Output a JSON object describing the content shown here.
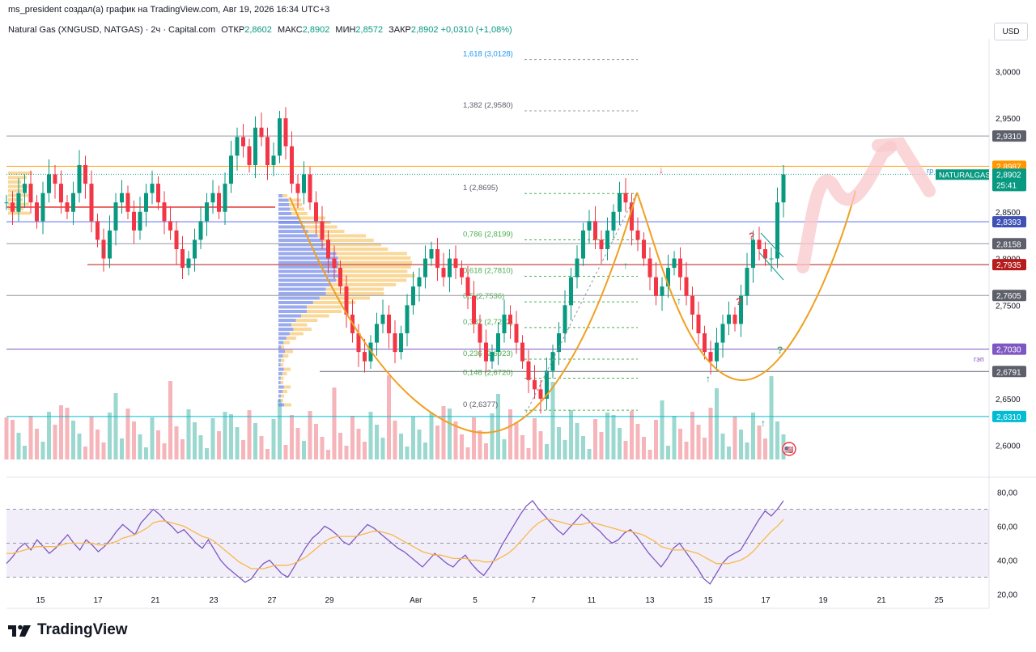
{
  "top_line": "ms_president создал(а) график на TradingView.com, Авг 19, 2026 16:34 UTC+3",
  "header": {
    "symbol": "Natural Gas (XNGUSD, NATGAS) · 2ч · Capital.com",
    "open_label": "ОТКР",
    "open": "2,8602",
    "high_label": "МАКС",
    "high": "2,8902",
    "low_label": "МИН",
    "low": "2,8572",
    "close_label": "ЗАКР",
    "close": "2,8902",
    "change": "+0,0310 (+1,08%)"
  },
  "currency_button": "USD",
  "brand": "TradingView",
  "colors": {
    "up": "#089981",
    "down": "#f23645",
    "orange": "#ff9800",
    "fib": "#4caf50",
    "purple": "#7e57c2",
    "cyan": "#00bcd4",
    "red_line": "#e53935",
    "blue_line": "#5b6cf0"
  },
  "chart_data": [
    {
      "type": "line",
      "title": "",
      "ylim": [
        2.585,
        3.035
      ],
      "y_ticks": [
        "3,0000",
        "2,9500",
        "2,8500",
        "2,8000",
        "2,7500",
        "2,6500",
        "2,6000"
      ],
      "x_tick_labels": [
        "15",
        "17",
        "21",
        "23",
        "27",
        "29",
        "Авг",
        "5",
        "7",
        "11",
        "13",
        "15",
        "17",
        "19",
        "21",
        "25",
        "27"
      ],
      "price_labels": [
        {
          "text": "2,9310",
          "y": 2.931,
          "color": "#ffffff",
          "bg": "#5d606b",
          "line": "#9598a1"
        },
        {
          "text": "2,8987",
          "y": 2.8987,
          "color": "#ffffff",
          "bg": "#ff9800",
          "line": "#ff9800"
        },
        {
          "text": "2,8393",
          "y": 2.8393,
          "color": "#ffffff",
          "bg": "#3f51b5",
          "line": "#5b6cf0"
        },
        {
          "text": "2,8158",
          "y": 2.8158,
          "color": "#ffffff",
          "bg": "#5d606b",
          "line": "#9598a1"
        },
        {
          "text": "2,7935",
          "y": 2.7935,
          "color": "#ffffff",
          "bg": "#b71c1c",
          "line": "#b71c1c"
        },
        {
          "text": "2,7605",
          "y": 2.7605,
          "color": "#ffffff",
          "bg": "#5d606b",
          "line": "#9598a1"
        },
        {
          "text": "2,7030",
          "y": 2.703,
          "color": "#ffffff",
          "bg": "#7e57c2",
          "line": "#7e57c2"
        },
        {
          "text": "2,6791",
          "y": 2.6791,
          "color": "#ffffff",
          "bg": "#5d606b",
          "line": "#5d606b"
        },
        {
          "text": "2,6310",
          "y": 2.631,
          "color": "#ffffff",
          "bg": "#00bcd4",
          "line": "#00bcd4"
        }
      ],
      "current_price": {
        "symbol": "NATURALGAS",
        "price": "2,8902",
        "countdown": "25:41",
        "y": 2.8902
      },
      "fib_levels": [
        {
          "label": "1,618 (3,0128)",
          "y": 3.0128
        },
        {
          "label": "1,382 (2,9580)",
          "y": 2.958
        },
        {
          "label": "1 (2,8695)",
          "y": 2.8695
        },
        {
          "label": "0,786 (2,8199)",
          "y": 2.8199
        },
        {
          "label": "0,618 (2,7810)",
          "y": 2.781
        },
        {
          "label": "0,5 (2,7536)",
          "y": 2.7536
        },
        {
          "label": "0,382 (2,7262)",
          "y": 2.7262
        },
        {
          "label": "0,236 (2,6923)",
          "y": 2.6923
        },
        {
          "label": "0,148 (2,6720)",
          "y": 2.672
        },
        {
          "label": "0 (2,6377)",
          "y": 2.6377
        }
      ],
      "small_labels": {
        "gp": "гр",
        "gap": "гэп"
      },
      "series": [
        {
          "values": [
            2.86,
            2.85,
            2.87,
            2.88,
            2.86,
            2.84,
            2.87,
            2.89,
            2.88,
            2.86,
            2.85,
            2.87,
            2.9,
            2.88,
            2.84,
            2.82,
            2.8,
            2.83,
            2.86,
            2.87,
            2.85,
            2.83,
            2.85,
            2.87,
            2.88,
            2.86,
            2.84,
            2.83,
            2.81,
            2.79,
            2.8,
            2.82,
            2.84,
            2.86,
            2.87,
            2.85,
            2.88,
            2.91,
            2.93,
            2.92,
            2.9,
            2.94,
            2.93,
            2.9,
            2.91,
            2.95,
            2.92,
            2.88,
            2.87,
            2.89,
            2.86,
            2.84,
            2.82,
            2.8,
            2.79,
            2.77,
            2.74,
            2.72,
            2.7,
            2.69,
            2.71,
            2.73,
            2.74,
            2.72,
            2.7,
            2.72,
            2.75,
            2.77,
            2.78,
            2.8,
            2.81,
            2.79,
            2.78,
            2.8,
            2.79,
            2.78,
            2.76,
            2.73,
            2.71,
            2.69,
            2.7,
            2.72,
            2.74,
            2.73,
            2.71,
            2.69,
            2.67,
            2.66,
            2.65,
            2.68,
            2.7,
            2.72,
            2.75,
            2.78,
            2.8,
            2.83,
            2.84,
            2.82,
            2.81,
            2.83,
            2.85,
            2.87,
            2.86,
            2.83,
            2.82,
            2.8,
            2.78,
            2.76,
            2.77,
            2.79,
            2.8,
            2.78,
            2.76,
            2.74,
            2.72,
            2.7,
            2.69,
            2.71,
            2.73,
            2.74,
            2.73,
            2.76,
            2.79,
            2.82,
            2.81,
            2.8,
            2.8,
            2.86,
            2.89
          ]
        }
      ]
    },
    {
      "type": "line",
      "title": "",
      "ylim": [
        15,
        85
      ],
      "y_ticks": [
        "80,00",
        "60,00",
        "40,00",
        "20,00"
      ],
      "bands": [
        30,
        50,
        70
      ],
      "series": [
        {
          "values": [
            38,
            42,
            47,
            50,
            46,
            52,
            48,
            44,
            47,
            51,
            55,
            50,
            46,
            52,
            49,
            45,
            48,
            52,
            57,
            61,
            58,
            55,
            62,
            66,
            70,
            67,
            63,
            60,
            56,
            58,
            54,
            50,
            47,
            52,
            46,
            40,
            36,
            33,
            30,
            27,
            29,
            34,
            38,
            40,
            36,
            32,
            30,
            36,
            42,
            48,
            53,
            56,
            60,
            58,
            55,
            51,
            49,
            53,
            57,
            61,
            59,
            56,
            53,
            50,
            47,
            45,
            42,
            39,
            36,
            40,
            44,
            41,
            38,
            36,
            40,
            43,
            38,
            34,
            31,
            36,
            42,
            49,
            55,
            61,
            67,
            72,
            75,
            70,
            66,
            62,
            58,
            55,
            59,
            63,
            67,
            64,
            60,
            57,
            53,
            50,
            52,
            56,
            58,
            54,
            49,
            44,
            40,
            36,
            41,
            47,
            50,
            45,
            40,
            35,
            29,
            26,
            32,
            38,
            42,
            44,
            46,
            52,
            58,
            64,
            69,
            66,
            70,
            75
          ]
        },
        {
          "values": [
            44,
            44,
            45,
            46,
            47,
            48,
            48,
            48,
            48,
            49,
            50,
            50,
            50,
            50,
            50,
            49,
            49,
            50,
            51,
            53,
            54,
            55,
            57,
            59,
            62,
            63,
            63,
            62,
            61,
            60,
            58,
            56,
            54,
            53,
            51,
            48,
            45,
            42,
            39,
            37,
            35,
            35,
            35,
            36,
            37,
            37,
            37,
            38,
            40,
            42,
            45,
            48,
            51,
            53,
            54,
            54,
            54,
            54,
            55,
            56,
            57,
            57,
            56,
            55,
            53,
            51,
            49,
            47,
            45,
            44,
            43,
            43,
            42,
            41,
            41,
            41,
            40,
            40,
            39,
            39,
            40,
            42,
            44,
            47,
            51,
            55,
            59,
            62,
            64,
            64,
            63,
            62,
            61,
            61,
            61,
            62,
            62,
            61,
            60,
            59,
            58,
            57,
            57,
            56,
            55,
            53,
            51,
            48,
            47,
            46,
            46,
            46,
            45,
            44,
            42,
            40,
            38,
            38,
            38,
            39,
            40,
            42,
            45,
            49,
            53,
            57,
            60,
            64
          ]
        }
      ]
    }
  ]
}
